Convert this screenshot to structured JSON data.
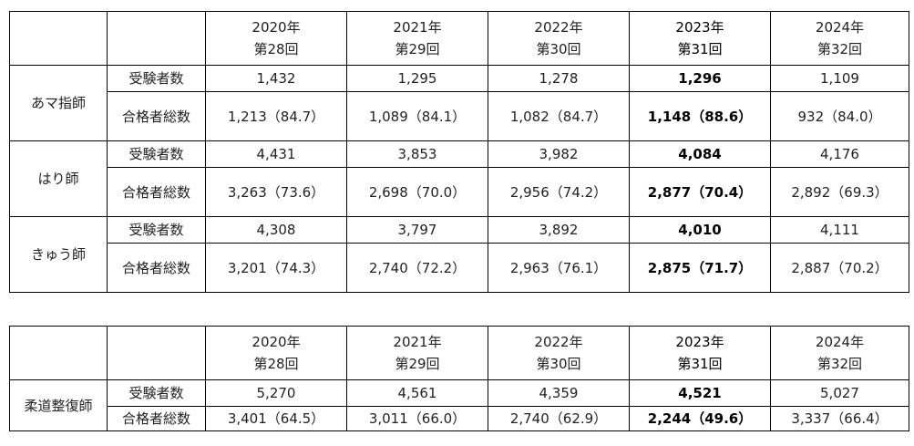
{
  "tables": [
    {
      "years": [
        "2020年",
        "2021年",
        "2022年",
        "2023年",
        "2024年"
      ],
      "rounds": [
        "第28回",
        "第29回",
        "第30回",
        "第31回",
        "第32回"
      ],
      "groups": [
        {
          "label": "あマ指師",
          "rows": [
            {
              "label": "受験者数",
              "cells": [
                "1,432",
                "1,295",
                "1,278",
                "1,296",
                "1,109"
              ]
            },
            {
              "label": "合格者総数",
              "cells": [
                "1,213（84.7）",
                "1,089（84.1）",
                "1,082（84.7）",
                "1,148（88.6）",
                "932（84.0）"
              ]
            }
          ]
        },
        {
          "label": "はり師",
          "rows": [
            {
              "label": "受験者数",
              "cells": [
                "4,431",
                "3,853",
                "3,982",
                "4,084",
                "4,176"
              ]
            },
            {
              "label": "合格者総数",
              "cells": [
                "3,263（73.6）",
                "2,698（70.0）",
                "2,956（74.2）",
                "2,877（70.4）",
                "2,892（69.3）"
              ]
            }
          ]
        },
        {
          "label": "きゅう師",
          "rows": [
            {
              "label": "受験者数",
              "cells": [
                "4,308",
                "3,797",
                "3,892",
                "4,010",
                "4,111"
              ]
            },
            {
              "label": "合格者総数",
              "cells": [
                "3,201（74.3）",
                "2,740（72.2）",
                "2,963（76.1）",
                "2,875（71.7）",
                "2,887（70.2）"
              ]
            }
          ]
        }
      ]
    },
    {
      "years": [
        "2020年",
        "2021年",
        "2022年",
        "2023年",
        "2024年"
      ],
      "rounds": [
        "第28回",
        "第29回",
        "第30回",
        "第31回",
        "第32回"
      ],
      "groups": [
        {
          "label": "柔道整復師",
          "rows": [
            {
              "label": "受験者数",
              "cells": [
                "5,270",
                "4,561",
                "4,359",
                "4,521",
                "5,027"
              ]
            },
            {
              "label": "合格者総数",
              "cells": [
                "3,401（64.5）",
                "3,011（66.0）",
                "2,740（62.9）",
                "2,244（49.6）",
                "3,337（66.4）"
              ]
            }
          ]
        }
      ]
    }
  ]
}
